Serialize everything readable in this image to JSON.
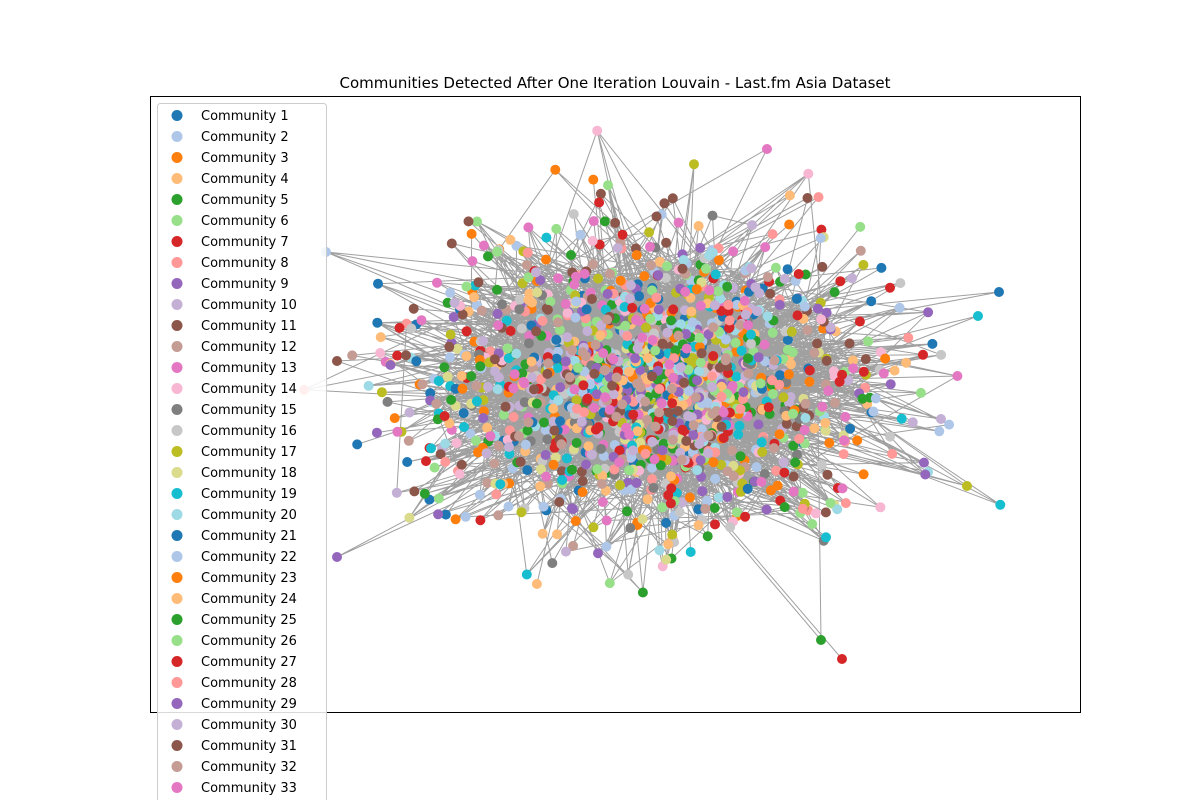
{
  "chart_data": {
    "type": "network",
    "title": "Communities Detected After One Iteration Louvain - Last.fm Asia Dataset",
    "xlabel": "",
    "ylabel": "",
    "grid": false,
    "axes_ticks": false,
    "legend_placement": "upper-left",
    "node_color": "community",
    "edge_color": "#808080",
    "series": [
      {
        "name": "Community 1",
        "color": "#1f77b4"
      },
      {
        "name": "Community 2",
        "color": "#aec7e8"
      },
      {
        "name": "Community 3",
        "color": "#ff7f0e"
      },
      {
        "name": "Community 4",
        "color": "#ffbb78"
      },
      {
        "name": "Community 5",
        "color": "#2ca02c"
      },
      {
        "name": "Community 6",
        "color": "#98df8a"
      },
      {
        "name": "Community 7",
        "color": "#d62728"
      },
      {
        "name": "Community 8",
        "color": "#ff9896"
      },
      {
        "name": "Community 9",
        "color": "#9467bd"
      },
      {
        "name": "Community 10",
        "color": "#c5b0d5"
      },
      {
        "name": "Community 11",
        "color": "#8c564b"
      },
      {
        "name": "Community 12",
        "color": "#c49c94"
      },
      {
        "name": "Community 13",
        "color": "#e377c2"
      },
      {
        "name": "Community 14",
        "color": "#f7b6d2"
      },
      {
        "name": "Community 15",
        "color": "#7f7f7f"
      },
      {
        "name": "Community 16",
        "color": "#c7c7c7"
      },
      {
        "name": "Community 17",
        "color": "#bcbd22"
      },
      {
        "name": "Community 18",
        "color": "#dbdb8d"
      },
      {
        "name": "Community 19",
        "color": "#17becf"
      },
      {
        "name": "Community 20",
        "color": "#9edae5"
      },
      {
        "name": "Community 21",
        "color": "#1f77b4"
      },
      {
        "name": "Community 22",
        "color": "#aec7e8"
      },
      {
        "name": "Community 23",
        "color": "#ff7f0e"
      },
      {
        "name": "Community 24",
        "color": "#ffbb78"
      },
      {
        "name": "Community 25",
        "color": "#2ca02c"
      },
      {
        "name": "Community 26",
        "color": "#98df8a"
      },
      {
        "name": "Community 27",
        "color": "#d62728"
      },
      {
        "name": "Community 28",
        "color": "#ff9896"
      },
      {
        "name": "Community 29",
        "color": "#9467bd"
      },
      {
        "name": "Community 30",
        "color": "#c5b0d5"
      },
      {
        "name": "Community 31",
        "color": "#8c564b"
      },
      {
        "name": "Community 32",
        "color": "#c49c94"
      },
      {
        "name": "Community 33",
        "color": "#e377c2"
      }
    ]
  }
}
